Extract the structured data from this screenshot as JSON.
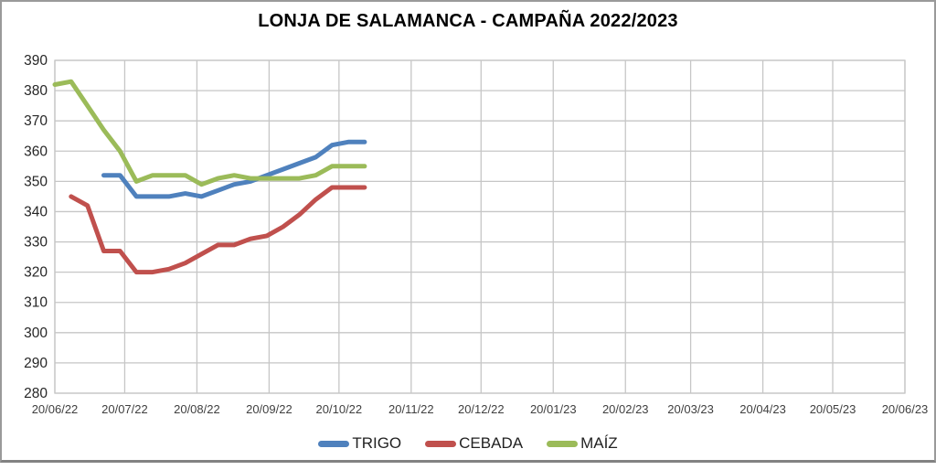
{
  "window": {
    "background": "#ffffff",
    "frame_border_color": "#9a9a9a"
  },
  "chart_data": {
    "type": "line",
    "title": "LONJA DE SALAMANCA - CAMPAÑA 2022/2023",
    "grid": true,
    "legend_position": "bottom",
    "colors": {
      "gridline": "#c6c6c6",
      "y_tick_label": "#262626",
      "x_tick_label": "#3f3f3f",
      "title": "#000000"
    },
    "y_axis": {
      "min": 280,
      "max": 390,
      "step": 10,
      "tick_labels": [
        "390",
        "380",
        "370",
        "360",
        "350",
        "340",
        "330",
        "320",
        "310",
        "300",
        "290",
        "280"
      ]
    },
    "x_axis": {
      "tick_labels": [
        "20/06/22",
        "20/07/22",
        "20/08/22",
        "20/09/22",
        "20/10/22",
        "20/11/22",
        "20/12/22",
        "20/01/23",
        "20/02/23",
        "20/03/23",
        "20/04/23",
        "20/05/23",
        "20/06/23"
      ],
      "tick_day_offsets": [
        0,
        30,
        61,
        92,
        122,
        153,
        183,
        214,
        245,
        273,
        304,
        334,
        365
      ],
      "total_days": 365
    },
    "categories": [
      "20/06/22",
      "27/06/22",
      "04/07/22",
      "11/07/22",
      "18/07/22",
      "25/07/22",
      "01/08/22",
      "08/08/22",
      "15/08/22",
      "22/08/22",
      "29/08/22",
      "05/09/22",
      "12/09/22",
      "19/09/22",
      "26/09/22",
      "03/10/22",
      "10/10/22",
      "17/10/22",
      "24/10/22",
      "31/10/22"
    ],
    "category_day_offsets": [
      0,
      7,
      14,
      21,
      28,
      35,
      42,
      49,
      56,
      63,
      70,
      77,
      84,
      91,
      98,
      105,
      112,
      119,
      126,
      133
    ],
    "series": [
      {
        "name": "TRIGO",
        "color": "#4F81BD",
        "values": [
          null,
          null,
          null,
          352,
          352,
          345,
          345,
          345,
          346,
          345,
          347,
          349,
          350,
          352,
          354,
          356,
          358,
          362,
          363,
          363
        ]
      },
      {
        "name": "CEBADA",
        "color": "#C0504D",
        "values": [
          null,
          345,
          342,
          327,
          327,
          320,
          320,
          321,
          323,
          326,
          329,
          329,
          331,
          332,
          335,
          339,
          344,
          348,
          348,
          348
        ]
      },
      {
        "name": "MAÍZ",
        "color": "#9BBB59",
        "values": [
          382,
          383,
          375,
          367,
          360,
          350,
          352,
          352,
          352,
          349,
          351,
          352,
          351,
          351,
          351,
          351,
          352,
          355,
          355,
          355
        ]
      }
    ]
  }
}
